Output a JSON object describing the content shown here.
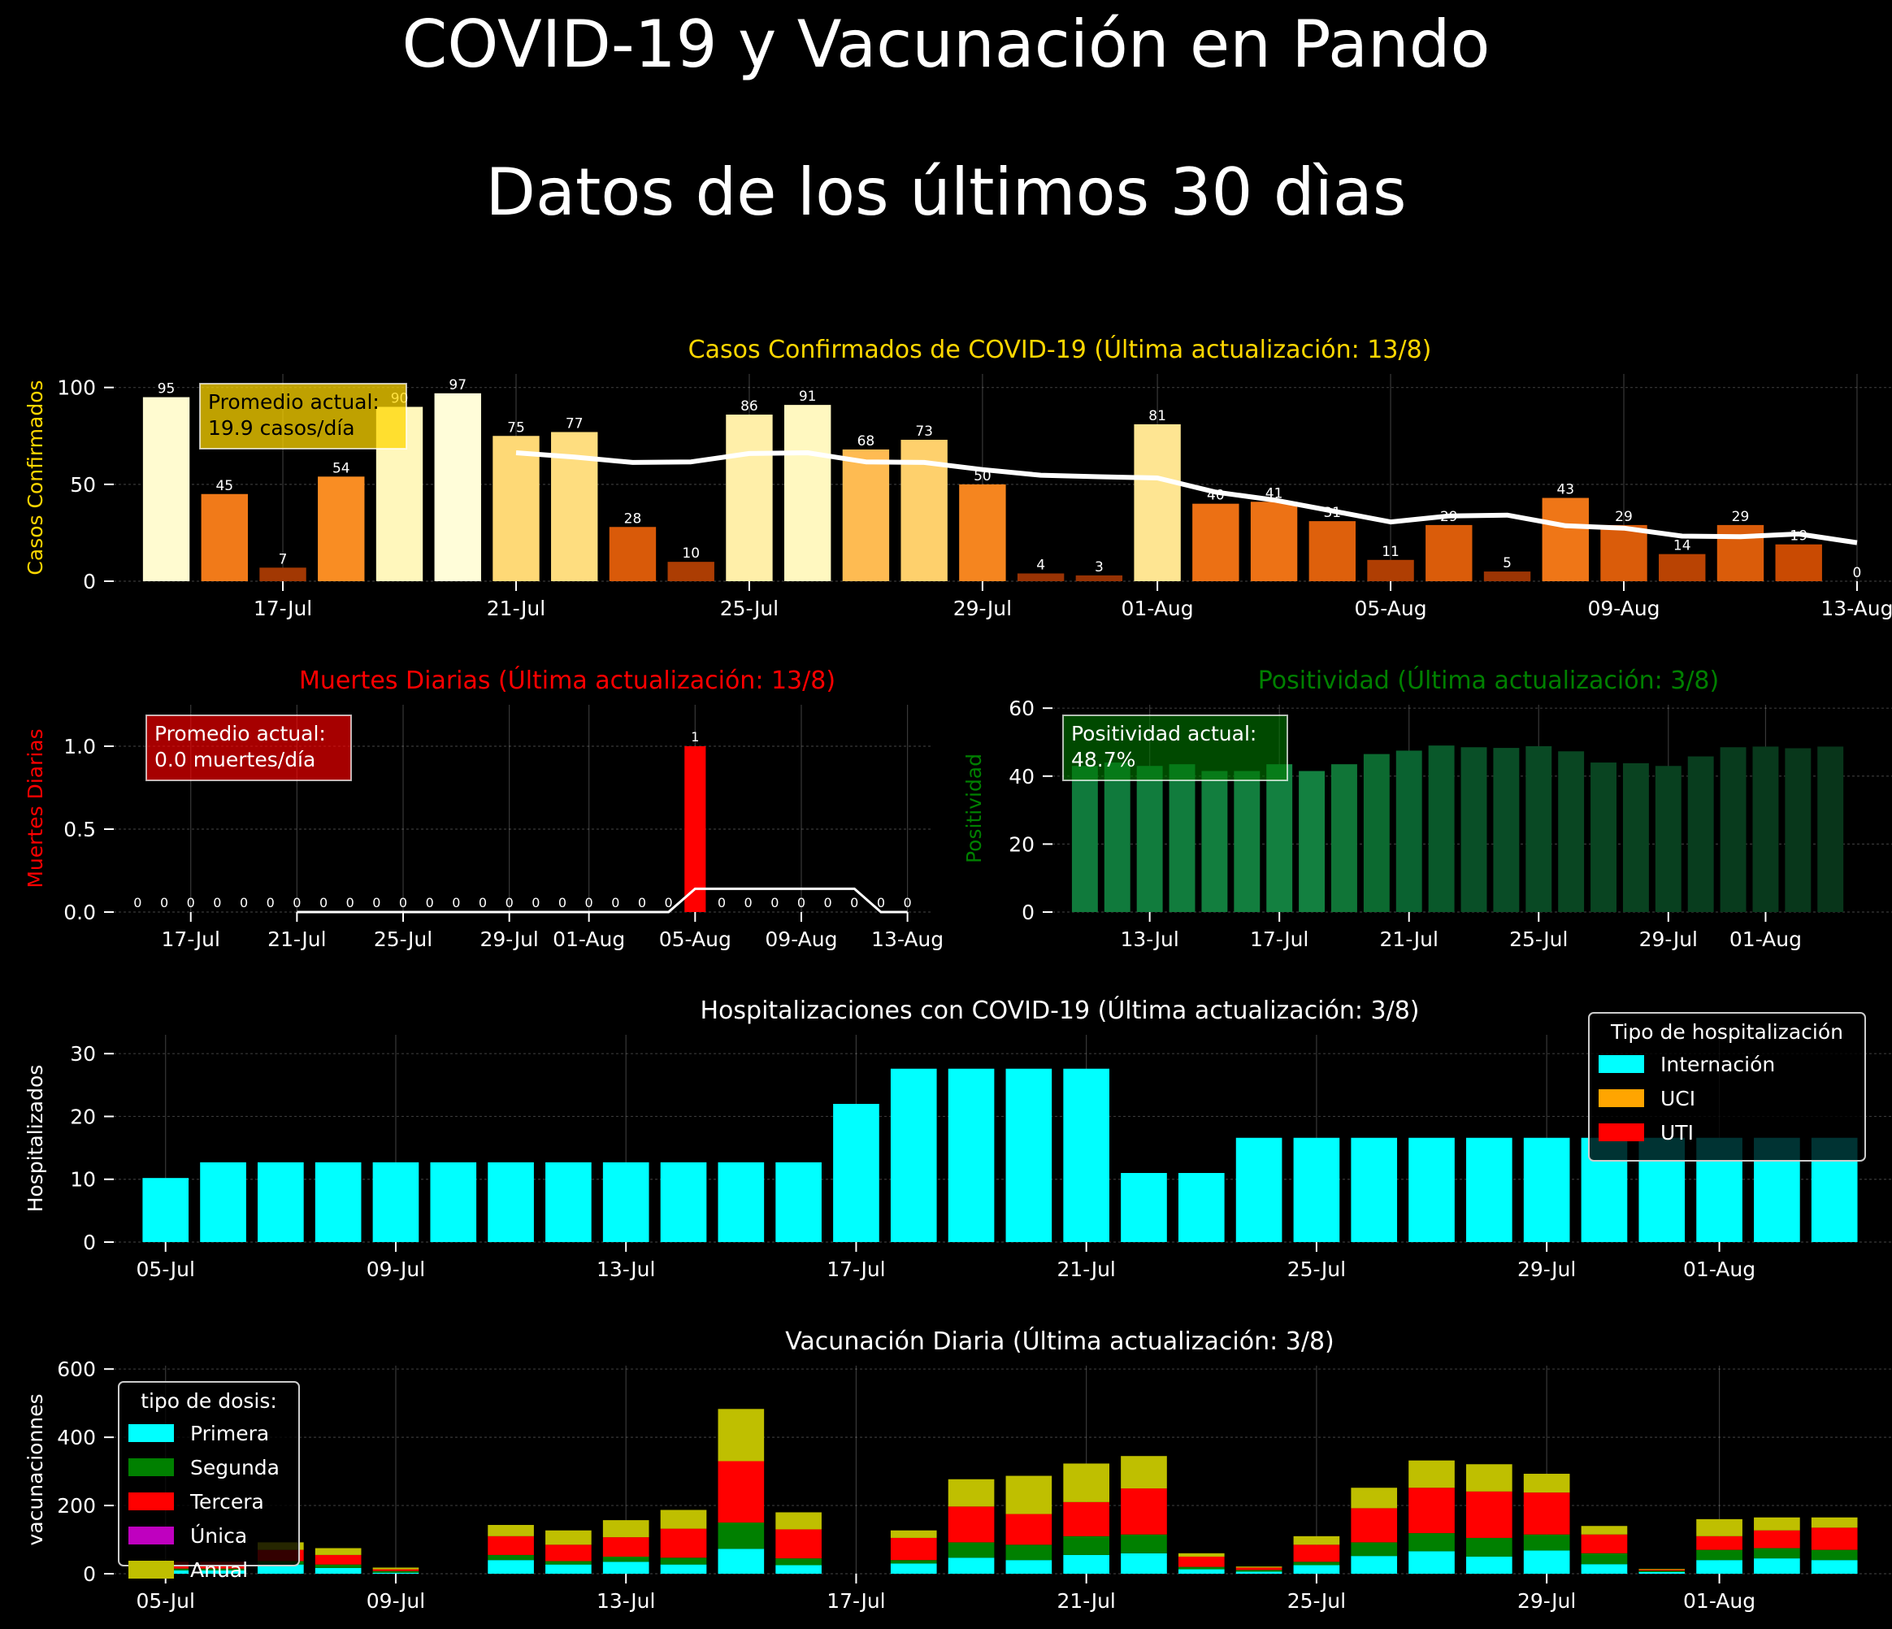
{
  "page": {
    "title_line1": "COVID-19  y Vacunación en Pando",
    "title_line2": "Datos de los últimos 30 dìas"
  },
  "colors": {
    "background": "#000000",
    "cases_title": "#FFD700",
    "deaths_title": "#FF0000",
    "positivity_title": "#008000",
    "internacion": "#00FFFF",
    "uci": "#FFA500",
    "uti": "#FF0000",
    "primera": "#00FFFF",
    "segunda": "#008000",
    "tercera": "#FF0000",
    "unica": "#BF00BF",
    "anual": "#BFBF00"
  },
  "chart_data": [
    {
      "id": "cases",
      "type": "bar",
      "title": "Casos Confirmados de COVID-19 (Última actualización: 13/8)",
      "ylabel": "Casos Confirmados",
      "ylim": [
        0,
        107
      ],
      "yticks": [
        0,
        50,
        100
      ],
      "xlim": [
        -0.9,
        29.6
      ],
      "xticks": [
        {
          "i": 2,
          "label": "17-Jul"
        },
        {
          "i": 6,
          "label": "21-Jul"
        },
        {
          "i": 10,
          "label": "25-Jul"
        },
        {
          "i": 14,
          "label": "29-Jul"
        },
        {
          "i": 17,
          "label": "01-Aug"
        },
        {
          "i": 21,
          "label": "05-Aug"
        },
        {
          "i": 25,
          "label": "09-Aug"
        },
        {
          "i": 29,
          "label": "13-Aug"
        }
      ],
      "values": [
        95,
        45,
        7,
        54,
        90,
        97,
        75,
        77,
        28,
        10,
        86,
        91,
        68,
        73,
        50,
        4,
        3,
        81,
        40,
        41,
        31,
        11,
        29,
        5,
        43,
        29,
        14,
        29,
        19,
        0
      ],
      "moving_average": {
        "start": 6,
        "values": [
          66.3,
          64.1,
          61.3,
          61.6,
          65.9,
          66.3,
          61.6,
          61.3,
          57.6,
          54.7,
          53.9,
          53.3,
          46.0,
          41.9,
          36.3,
          30.6,
          33.7,
          34.1,
          28.6,
          27.4,
          23.3,
          23.0,
          24.4,
          19.9
        ]
      },
      "annotation": {
        "line1": "Promedio actual:",
        "line2": "19.9 casos/día"
      },
      "grid": true
    },
    {
      "id": "deaths",
      "type": "bar",
      "title": "Muertes Diarias (Última actualización: 13/8)",
      "ylabel": "Muertes Diarias",
      "ylim": [
        0,
        1.25
      ],
      "yticks": [
        "0.0",
        "0.5",
        "1.0"
      ],
      "xlim": [
        -0.9,
        29.9
      ],
      "xticks": [
        {
          "i": 2,
          "label": "17-Jul"
        },
        {
          "i": 6,
          "label": "21-Jul"
        },
        {
          "i": 10,
          "label": "25-Jul"
        },
        {
          "i": 14,
          "label": "29-Jul"
        },
        {
          "i": 17,
          "label": "01-Aug"
        },
        {
          "i": 21,
          "label": "05-Aug"
        },
        {
          "i": 25,
          "label": "09-Aug"
        },
        {
          "i": 29,
          "label": "13-Aug"
        }
      ],
      "values": [
        0,
        0,
        0,
        0,
        0,
        0,
        0,
        0,
        0,
        0,
        0,
        0,
        0,
        0,
        0,
        0,
        0,
        0,
        0,
        0,
        0,
        1,
        0,
        0,
        0,
        0,
        0,
        0,
        0,
        0
      ],
      "moving_average": {
        "start": 6,
        "values": [
          0,
          0,
          0,
          0,
          0,
          0,
          0,
          0,
          0,
          0,
          0,
          0,
          0,
          0,
          0,
          0.14,
          0.14,
          0.14,
          0.14,
          0.14,
          0.14,
          0.14,
          0,
          0
        ]
      },
      "annotation": {
        "line1": "Promedio actual:",
        "line2": "0.0 muertes/día"
      },
      "grid": true
    },
    {
      "id": "positivity",
      "type": "bar",
      "title": "Positividad (Última actualización: 3/8)",
      "ylabel": "Positividad",
      "ylim": [
        0,
        61
      ],
      "yticks": [
        0,
        20,
        40,
        60
      ],
      "xlim": [
        -1.0,
        24.9
      ],
      "xticks": [
        {
          "i": 2,
          "label": "13-Jul"
        },
        {
          "i": 6,
          "label": "17-Jul"
        },
        {
          "i": 10,
          "label": "21-Jul"
        },
        {
          "i": 14,
          "label": "25-Jul"
        },
        {
          "i": 18,
          "label": "29-Jul"
        },
        {
          "i": 21,
          "label": "01-Aug"
        }
      ],
      "values": [
        43,
        44,
        43,
        43.5,
        41.5,
        41.5,
        43.5,
        41.5,
        43.5,
        46.5,
        47.5,
        49,
        48.5,
        48.3,
        48.8,
        47.3,
        44,
        43.8,
        43,
        45.8,
        48.5,
        48.7,
        48.2,
        48.7
      ],
      "colors": [
        "#107a3c",
        "#107a3c",
        "#117c3d",
        "#117c3d",
        "#127e3e",
        "#127e3e",
        "#138040",
        "#138040",
        "#107537",
        "#0c6a30",
        "#0a6230",
        "#09582a",
        "#094f27",
        "#094c26",
        "#094924",
        "#094622",
        "#094421",
        "#094220",
        "#08401f",
        "#083d1e",
        "#083b1d",
        "#08391c",
        "#08371b",
        "#08351a"
      ],
      "annotation": {
        "line1": "Positividad actual:",
        "line2": "48.7%"
      },
      "grid": true
    },
    {
      "id": "hospital",
      "type": "bar",
      "title": "Hospitalizaciones con COVID-19 (Última actualización: 3/8)",
      "ylabel": "Hospitalizados",
      "ylim": [
        0,
        33
      ],
      "yticks": [
        0,
        10,
        20,
        30
      ],
      "xlim": [
        -0.9,
        30.0
      ],
      "xticks": [
        {
          "i": 0,
          "label": "05-Jul"
        },
        {
          "i": 4,
          "label": "09-Jul"
        },
        {
          "i": 8,
          "label": "13-Jul"
        },
        {
          "i": 12,
          "label": "17-Jul"
        },
        {
          "i": 16,
          "label": "21-Jul"
        },
        {
          "i": 20,
          "label": "25-Jul"
        },
        {
          "i": 24,
          "label": "29-Jul"
        },
        {
          "i": 27,
          "label": "01-Aug"
        }
      ],
      "series": [
        {
          "name": "Internación",
          "values": [
            10.2,
            12.7,
            12.7,
            12.7,
            12.7,
            12.7,
            12.7,
            12.7,
            12.7,
            12.7,
            12.7,
            12.7,
            22,
            27.6,
            27.6,
            27.6,
            27.6,
            11,
            11,
            16.6,
            16.6,
            16.6,
            16.6,
            16.6,
            16.6,
            16.6,
            16.6,
            16.6,
            16.6,
            16.6
          ]
        },
        {
          "name": "UCI",
          "values": [
            0,
            0,
            0,
            0,
            0,
            0,
            0,
            0,
            0,
            0,
            0,
            0,
            0,
            0,
            0,
            0,
            0,
            0,
            0,
            0,
            0,
            0,
            0,
            0,
            0,
            0,
            0,
            0,
            0,
            0
          ]
        },
        {
          "name": "UTI",
          "values": [
            0,
            0,
            0,
            0,
            0,
            0,
            0,
            0,
            0,
            0,
            0,
            0,
            0,
            0,
            0,
            0,
            0,
            0,
            0,
            0,
            0,
            0,
            0,
            0,
            0,
            0,
            0,
            0,
            0,
            0
          ]
        }
      ],
      "legend": {
        "title": "Tipo de hospitalización",
        "placement": "top-right"
      },
      "grid": true
    },
    {
      "id": "vaccination",
      "type": "bar",
      "title": "Vacunación Diaria (Última actualización: 3/8)",
      "ylabel": "vacunacionnes",
      "ylim": [
        0,
        610
      ],
      "yticks": [
        0,
        200,
        400,
        600
      ],
      "xlim": [
        -0.9,
        30.0
      ],
      "xticks": [
        {
          "i": 0,
          "label": "05-Jul"
        },
        {
          "i": 4,
          "label": "09-Jul"
        },
        {
          "i": 8,
          "label": "13-Jul"
        },
        {
          "i": 12,
          "label": "17-Jul"
        },
        {
          "i": 16,
          "label": "21-Jul"
        },
        {
          "i": 20,
          "label": "25-Jul"
        },
        {
          "i": 24,
          "label": "29-Jul"
        },
        {
          "i": 27,
          "label": "01-Aug"
        }
      ],
      "series": [
        {
          "name": "Primera",
          "values": [
            10,
            10,
            27,
            17,
            3,
            0,
            40,
            27,
            35,
            27,
            73,
            25,
            0,
            30,
            47,
            40,
            55,
            60,
            13,
            6,
            25,
            52,
            66,
            50,
            68,
            28,
            5,
            40,
            45,
            40
          ]
        },
        {
          "name": "Segunda",
          "values": [
            5,
            5,
            10,
            10,
            5,
            0,
            15,
            10,
            15,
            20,
            77,
            20,
            0,
            10,
            45,
            45,
            55,
            55,
            7,
            5,
            10,
            40,
            53,
            55,
            47,
            32,
            4,
            30,
            30,
            30
          ]
        },
        {
          "name": "Tercera",
          "values": [
            20,
            20,
            33,
            28,
            5,
            0,
            55,
            48,
            57,
            85,
            180,
            85,
            0,
            65,
            105,
            90,
            100,
            135,
            30,
            7,
            50,
            100,
            133,
            136,
            123,
            55,
            3,
            40,
            52,
            65
          ]
        },
        {
          "name": "Única",
          "values": [
            0,
            0,
            0,
            0,
            0,
            0,
            0,
            0,
            0,
            0,
            0,
            0,
            0,
            0,
            0,
            0,
            0,
            0,
            0,
            0,
            0,
            0,
            0,
            0,
            0,
            0,
            0,
            0,
            0,
            0
          ]
        },
        {
          "name": "Anual",
          "values": [
            0,
            0,
            22,
            20,
            5,
            0,
            33,
            42,
            50,
            55,
            153,
            50,
            0,
            22,
            80,
            112,
            113,
            95,
            10,
            3,
            25,
            60,
            80,
            80,
            55,
            25,
            2,
            50,
            38,
            30
          ]
        }
      ],
      "legend": {
        "title": "tipo de dosis:",
        "placement": "top-left"
      },
      "grid": true
    }
  ]
}
